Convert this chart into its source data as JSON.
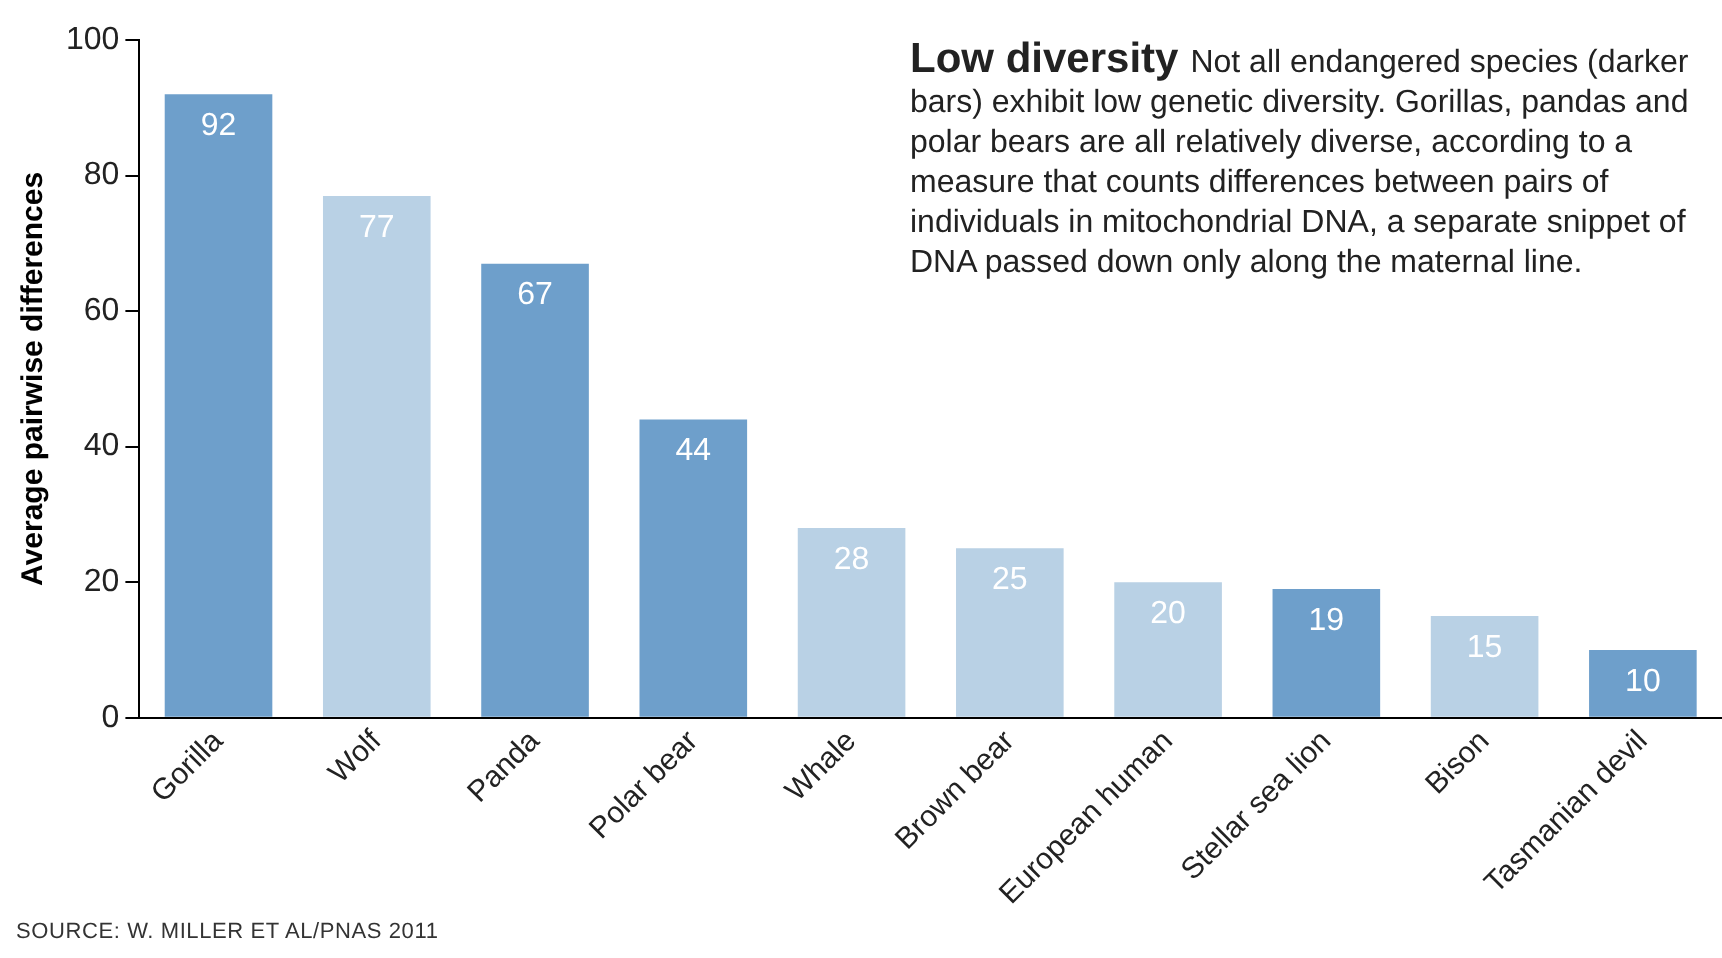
{
  "chart_data": {
    "type": "bar",
    "title": "Low diversity",
    "subtitle": "Not all endangered species (darker bars) exhibit low genetic diversity. Gorillas, pandas and polar bears are all relatively diverse, according to a measure that counts differences between pairs of individuals in mitochondrial DNA, a separate snippet of DNA passed down only along the maternal line.",
    "ylabel": "Average pairwise differences",
    "categories": [
      "Gorilla",
      "Wolf",
      "Panda",
      "Polar bear",
      "Whale",
      "Brown bear",
      "European human",
      "Stellar sea lion",
      "Bison",
      "Tasmanian devil"
    ],
    "values": [
      92,
      77,
      67,
      44,
      28,
      25,
      20,
      19,
      15,
      10
    ],
    "colors": [
      "#6e9fcb",
      "#b9d1e5",
      "#6e9fcb",
      "#6e9fcb",
      "#b9d1e5",
      "#b9d1e5",
      "#b9d1e5",
      "#6e9fcb",
      "#b9d1e5",
      "#6e9fcb"
    ],
    "ylim": [
      0,
      100
    ],
    "yticks": [
      0,
      20,
      40,
      60,
      80,
      100
    ],
    "grid": false,
    "legend": false,
    "data_labels": true,
    "annotations": [
      "SOURCE: W. MILLER ET AL/PNAS 2011"
    ]
  }
}
